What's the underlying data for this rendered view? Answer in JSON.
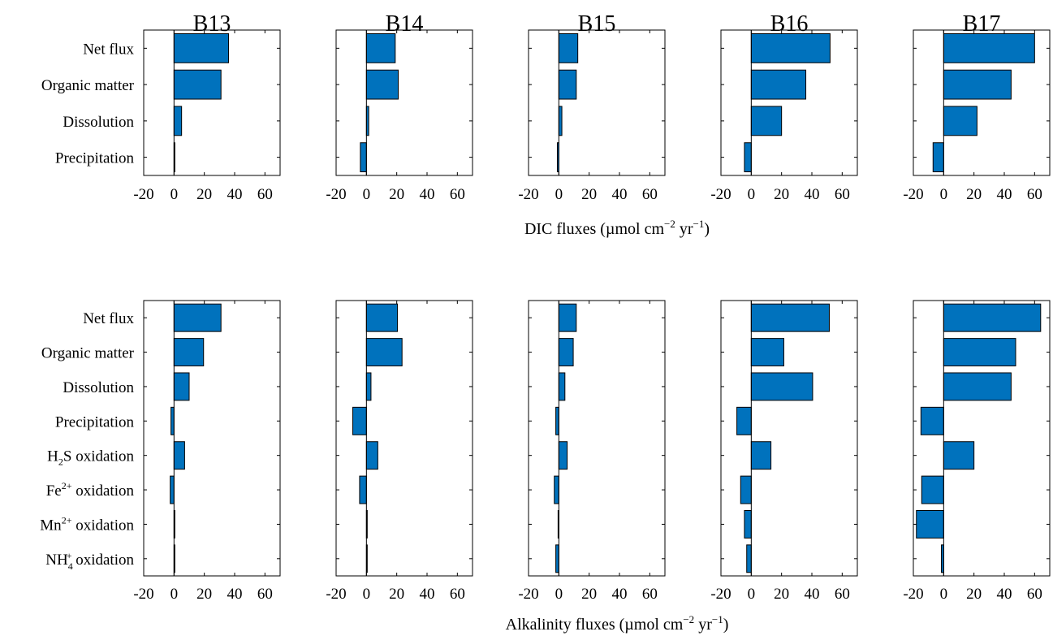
{
  "colors": {
    "bar": "#0072BD",
    "edge": "#000000"
  },
  "chart_data": [
    {
      "type": "bar",
      "orientation": "horizontal",
      "xlabel_parts": [
        "DIC fluxes (µmol cm",
        "−2",
        " yr",
        "−1",
        ")"
      ],
      "xlim": [
        -20,
        70
      ],
      "xticks": [
        -20,
        0,
        20,
        40,
        60
      ],
      "xtick_labels": [
        "-20",
        "0",
        "20",
        "40",
        "60"
      ],
      "categories": [
        {
          "parts": [
            "Net flux"
          ]
        },
        {
          "parts": [
            "Organic matter"
          ]
        },
        {
          "parts": [
            "Dissolution"
          ]
        },
        {
          "parts": [
            "Precipitation"
          ]
        }
      ],
      "panels": [
        {
          "title": "B13",
          "values": [
            36,
            31,
            5,
            0.5
          ]
        },
        {
          "title": "B14",
          "values": [
            19,
            21,
            1.5,
            -4
          ]
        },
        {
          "title": "B15",
          "values": [
            12.5,
            11.5,
            2,
            -1
          ]
        },
        {
          "title": "B16",
          "values": [
            52,
            36,
            20,
            -4.5
          ]
        },
        {
          "title": "B17",
          "values": [
            60,
            44.5,
            22,
            -7
          ]
        }
      ]
    },
    {
      "type": "bar",
      "orientation": "horizontal",
      "xlabel_parts": [
        "Alkalinity fluxes (µmol cm",
        "−2",
        " yr",
        "−1",
        ")"
      ],
      "xlim": [
        -20,
        70
      ],
      "xticks": [
        -20,
        0,
        20,
        40,
        60
      ],
      "xtick_labels": [
        "-20",
        "0",
        "20",
        "40",
        "60"
      ],
      "categories": [
        {
          "parts": [
            "Net flux"
          ]
        },
        {
          "parts": [
            "Organic matter"
          ]
        },
        {
          "parts": [
            "Dissolution"
          ]
        },
        {
          "parts": [
            "Precipitation"
          ]
        },
        {
          "parts": [
            "H",
            "2",
            "S oxidation"
          ]
        },
        {
          "parts": [
            "Fe",
            "2+",
            " oxidation"
          ]
        },
        {
          "parts": [
            "Mn",
            "2+",
            " oxidation"
          ]
        },
        {
          "parts": [
            "NH",
            "4",
            "+",
            " oxidation"
          ]
        }
      ],
      "panels": [
        {
          "title": "",
          "values": [
            31,
            19.5,
            10,
            -2,
            7,
            -2.5,
            0.4,
            0.4
          ]
        },
        {
          "title": "",
          "values": [
            20.5,
            23.5,
            3,
            -9,
            7.5,
            -4.5,
            0.3,
            0.3
          ]
        },
        {
          "title": "",
          "values": [
            11.5,
            9.5,
            4,
            -2,
            5.5,
            -3,
            -0.5,
            -2
          ]
        },
        {
          "title": "",
          "values": [
            51.5,
            21.5,
            40.5,
            -9.5,
            13,
            -7,
            -4.5,
            -3
          ]
        },
        {
          "title": "",
          "values": [
            64,
            47.5,
            44.5,
            -15,
            20,
            -14.5,
            -18,
            -1.5
          ]
        }
      ]
    }
  ]
}
